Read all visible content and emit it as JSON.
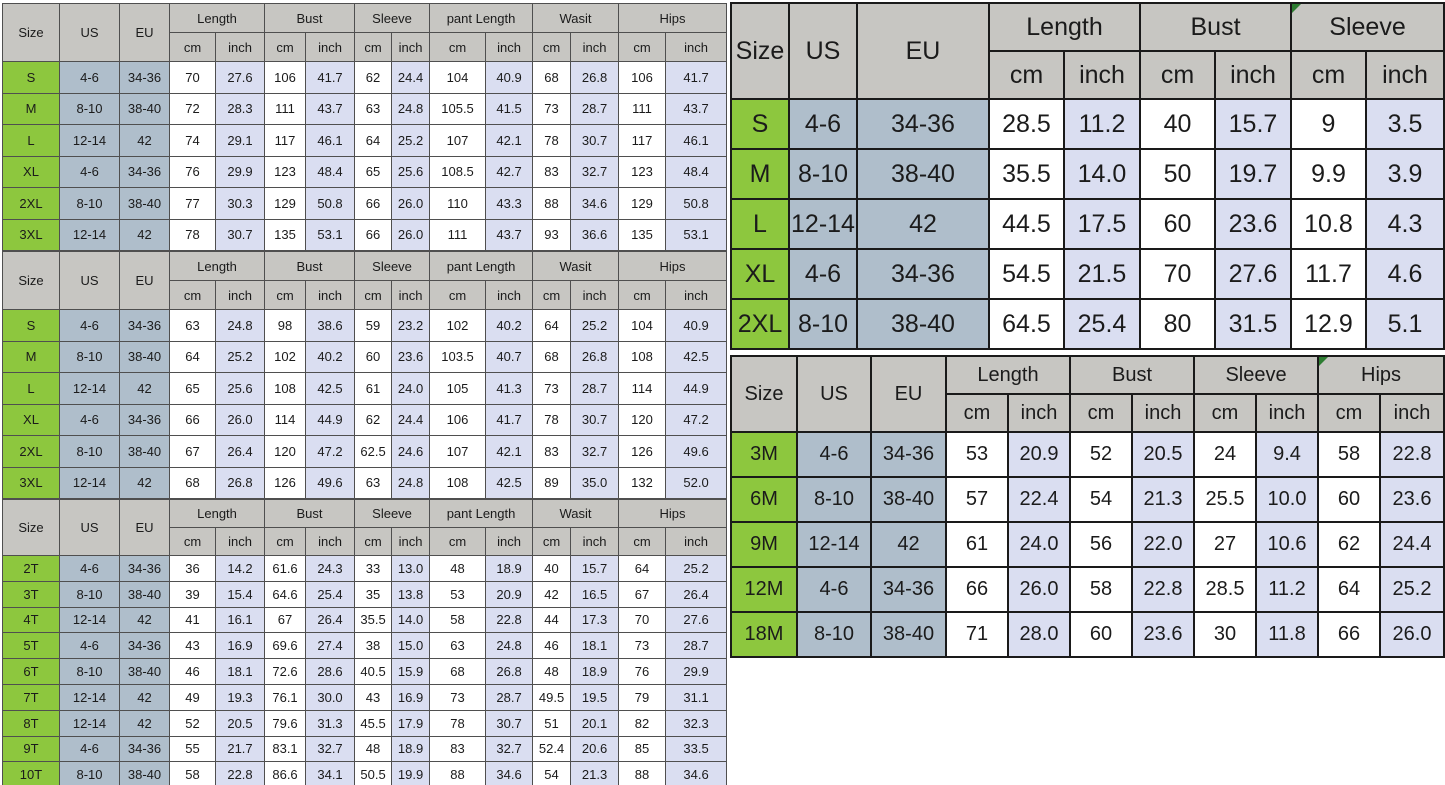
{
  "colors": {
    "size_green": "#8DC73E",
    "us_eu_blue": "#AFBECB",
    "header_gray": "#C7C6C2",
    "inch_column_fill": "#DADEF1",
    "corner_marker_green": "#2E7D32"
  },
  "tables": [
    {
      "name": "adult-size-chart-1",
      "base_headers": [
        "Size",
        "US",
        "EU"
      ],
      "groups": [
        "Length",
        "Bust",
        "Sleeve",
        "pant Length",
        "Wasit",
        "Hips"
      ],
      "unit_headers": [
        "cm",
        "inch"
      ],
      "rows": [
        [
          "S",
          "4-6",
          "34-36",
          "70",
          "27.6",
          "106",
          "41.7",
          "62",
          "24.4",
          "104",
          "40.9",
          "68",
          "26.8",
          "106",
          "41.7"
        ],
        [
          "M",
          "8-10",
          "38-40",
          "72",
          "28.3",
          "111",
          "43.7",
          "63",
          "24.8",
          "105.5",
          "41.5",
          "73",
          "28.7",
          "111",
          "43.7"
        ],
        [
          "L",
          "12-14",
          "42",
          "74",
          "29.1",
          "117",
          "46.1",
          "64",
          "25.2",
          "107",
          "42.1",
          "78",
          "30.7",
          "117",
          "46.1"
        ],
        [
          "XL",
          "4-6",
          "34-36",
          "76",
          "29.9",
          "123",
          "48.4",
          "65",
          "25.6",
          "108.5",
          "42.7",
          "83",
          "32.7",
          "123",
          "48.4"
        ],
        [
          "2XL",
          "8-10",
          "38-40",
          "77",
          "30.3",
          "129",
          "50.8",
          "66",
          "26.0",
          "110",
          "43.3",
          "88",
          "34.6",
          "129",
          "50.8"
        ],
        [
          "3XL",
          "12-14",
          "42",
          "78",
          "30.7",
          "135",
          "53.1",
          "66",
          "26.0",
          "111",
          "43.7",
          "93",
          "36.6",
          "135",
          "53.1"
        ]
      ]
    },
    {
      "name": "adult-size-chart-2",
      "base_headers": [
        "Size",
        "US",
        "EU"
      ],
      "groups": [
        "Length",
        "Bust",
        "Sleeve",
        "pant Length",
        "Wasit",
        "Hips"
      ],
      "unit_headers": [
        "cm",
        "inch"
      ],
      "rows": [
        [
          "S",
          "4-6",
          "34-36",
          "63",
          "24.8",
          "98",
          "38.6",
          "59",
          "23.2",
          "102",
          "40.2",
          "64",
          "25.2",
          "104",
          "40.9"
        ],
        [
          "M",
          "8-10",
          "38-40",
          "64",
          "25.2",
          "102",
          "40.2",
          "60",
          "23.6",
          "103.5",
          "40.7",
          "68",
          "26.8",
          "108",
          "42.5"
        ],
        [
          "L",
          "12-14",
          "42",
          "65",
          "25.6",
          "108",
          "42.5",
          "61",
          "24.0",
          "105",
          "41.3",
          "73",
          "28.7",
          "114",
          "44.9"
        ],
        [
          "XL",
          "4-6",
          "34-36",
          "66",
          "26.0",
          "114",
          "44.9",
          "62",
          "24.4",
          "106",
          "41.7",
          "78",
          "30.7",
          "120",
          "47.2"
        ],
        [
          "2XL",
          "8-10",
          "38-40",
          "67",
          "26.4",
          "120",
          "47.2",
          "62.5",
          "24.6",
          "107",
          "42.1",
          "83",
          "32.7",
          "126",
          "49.6"
        ],
        [
          "3XL",
          "12-14",
          "42",
          "68",
          "26.8",
          "126",
          "49.6",
          "63",
          "24.8",
          "108",
          "42.5",
          "89",
          "35.0",
          "132",
          "52.0"
        ]
      ]
    },
    {
      "name": "toddler-size-chart",
      "base_headers": [
        "Size",
        "US",
        "EU"
      ],
      "groups": [
        "Length",
        "Bust",
        "Sleeve",
        "pant Length",
        "Wasit",
        "Hips"
      ],
      "unit_headers": [
        "cm",
        "inch"
      ],
      "rows": [
        [
          "2T",
          "4-6",
          "34-36",
          "36",
          "14.2",
          "61.6",
          "24.3",
          "33",
          "13.0",
          "48",
          "18.9",
          "40",
          "15.7",
          "64",
          "25.2"
        ],
        [
          "3T",
          "8-10",
          "38-40",
          "39",
          "15.4",
          "64.6",
          "25.4",
          "35",
          "13.8",
          "53",
          "20.9",
          "42",
          "16.5",
          "67",
          "26.4"
        ],
        [
          "4T",
          "12-14",
          "42",
          "41",
          "16.1",
          "67",
          "26.4",
          "35.5",
          "14.0",
          "58",
          "22.8",
          "44",
          "17.3",
          "70",
          "27.6"
        ],
        [
          "5T",
          "4-6",
          "34-36",
          "43",
          "16.9",
          "69.6",
          "27.4",
          "38",
          "15.0",
          "63",
          "24.8",
          "46",
          "18.1",
          "73",
          "28.7"
        ],
        [
          "6T",
          "8-10",
          "38-40",
          "46",
          "18.1",
          "72.6",
          "28.6",
          "40.5",
          "15.9",
          "68",
          "26.8",
          "48",
          "18.9",
          "76",
          "29.9"
        ],
        [
          "7T",
          "12-14",
          "42",
          "49",
          "19.3",
          "76.1",
          "30.0",
          "43",
          "16.9",
          "73",
          "28.7",
          "49.5",
          "19.5",
          "79",
          "31.1"
        ],
        [
          "8T",
          "12-14",
          "42",
          "52",
          "20.5",
          "79.6",
          "31.3",
          "45.5",
          "17.9",
          "78",
          "30.7",
          "51",
          "20.1",
          "82",
          "32.3"
        ],
        [
          "9T",
          "4-6",
          "34-36",
          "55",
          "21.7",
          "83.1",
          "32.7",
          "48",
          "18.9",
          "83",
          "32.7",
          "52.4",
          "20.6",
          "85",
          "33.5"
        ],
        [
          "10T",
          "8-10",
          "38-40",
          "58",
          "22.8",
          "86.6",
          "34.1",
          "50.5",
          "19.9",
          "88",
          "34.6",
          "54",
          "21.3",
          "88",
          "34.6"
        ]
      ]
    },
    {
      "name": "top-size-chart",
      "base_headers": [
        "Size",
        "US",
        "EU"
      ],
      "groups": [
        "Length",
        "Bust",
        "Sleeve"
      ],
      "unit_headers": [
        "cm",
        "inch"
      ],
      "rows": [
        [
          "S",
          "4-6",
          "34-36",
          "28.5",
          "11.2",
          "40",
          "15.7",
          "9",
          "3.5"
        ],
        [
          "M",
          "8-10",
          "38-40",
          "35.5",
          "14.0",
          "50",
          "19.7",
          "9.9",
          "3.9"
        ],
        [
          "L",
          "12-14",
          "42",
          "44.5",
          "17.5",
          "60",
          "23.6",
          "10.8",
          "4.3"
        ],
        [
          "XL",
          "4-6",
          "34-36",
          "54.5",
          "21.5",
          "70",
          "27.6",
          "11.7",
          "4.6"
        ],
        [
          "2XL",
          "8-10",
          "38-40",
          "64.5",
          "25.4",
          "80",
          "31.5",
          "12.9",
          "5.1"
        ]
      ]
    },
    {
      "name": "baby-size-chart",
      "base_headers": [
        "Size",
        "US",
        "EU"
      ],
      "groups": [
        "Length",
        "Bust",
        "Sleeve",
        "Hips"
      ],
      "unit_headers": [
        "cm",
        "inch"
      ],
      "rows": [
        [
          "3M",
          "4-6",
          "34-36",
          "53",
          "20.9",
          "52",
          "20.5",
          "24",
          "9.4",
          "58",
          "22.8"
        ],
        [
          "6M",
          "8-10",
          "38-40",
          "57",
          "22.4",
          "54",
          "21.3",
          "25.5",
          "10.0",
          "60",
          "23.6"
        ],
        [
          "9M",
          "12-14",
          "42",
          "61",
          "24.0",
          "56",
          "22.0",
          "27",
          "10.6",
          "62",
          "24.4"
        ],
        [
          "12M",
          "4-6",
          "34-36",
          "66",
          "26.0",
          "58",
          "22.8",
          "28.5",
          "11.2",
          "64",
          "25.2"
        ],
        [
          "18M",
          "8-10",
          "38-40",
          "71",
          "28.0",
          "60",
          "23.6",
          "30",
          "11.8",
          "66",
          "26.0"
        ]
      ]
    }
  ]
}
